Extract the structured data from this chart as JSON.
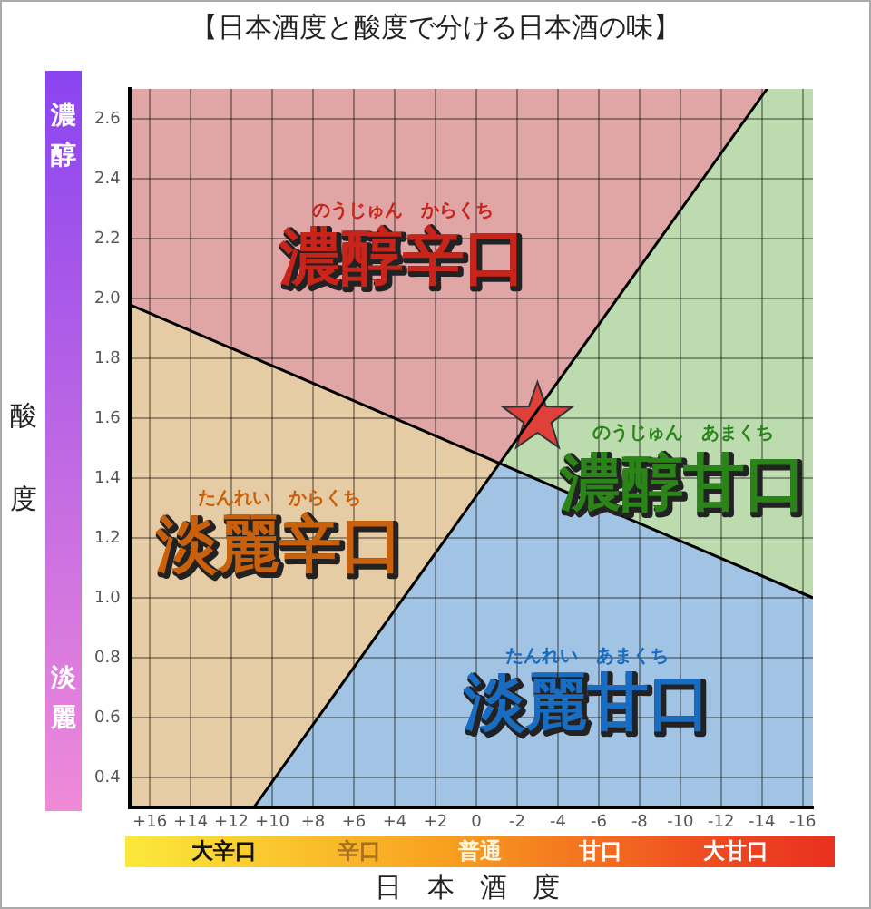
{
  "chart_data": {
    "type": "line",
    "title": "【日本酒度と酸度で分ける日本酒の味】",
    "xlabel": "日本酒度",
    "ylabel": "酸度",
    "xlim": [
      17,
      -16.5
    ],
    "ylim": [
      0.3,
      2.7
    ],
    "xticks": [
      {
        "value": 16,
        "label": "+16"
      },
      {
        "value": 14,
        "label": "+14"
      },
      {
        "value": 12,
        "label": "+12"
      },
      {
        "value": 10,
        "label": "+10"
      },
      {
        "value": 8,
        "label": "+8"
      },
      {
        "value": 6,
        "label": "+6"
      },
      {
        "value": 4,
        "label": "+4"
      },
      {
        "value": 2,
        "label": "+2"
      },
      0,
      -2,
      -4,
      -6,
      -8,
      -10,
      -12,
      -14,
      -16
    ],
    "yticks": [
      0.4,
      0.6,
      0.8,
      {
        "value": 1,
        "label": "1.0"
      },
      1.2,
      1.4,
      1.6,
      1.8,
      {
        "value": 2,
        "label": "2.0"
      },
      2.2,
      2.4,
      2.6
    ],
    "grid": true,
    "legend": false,
    "series": [
      {
        "type": "line",
        "color": "#000000",
        "marker": "none",
        "x": [
          17,
          -16.5
        ],
        "values": [
          1.98,
          1.0
        ]
      },
      {
        "type": "line",
        "color": "#000000",
        "marker": "none",
        "x": [
          10.9,
          -14.25
        ],
        "values": [
          0.3,
          2.7
        ]
      },
      {
        "type": "scatter",
        "color": "#e0403a",
        "marker": "star",
        "x": [
          -3
        ],
        "values": [
          1.6
        ]
      }
    ],
    "annotations": [
      "のうじゅん　からくち",
      "濃醇辛口",
      "のうじゅん　あまくち",
      "濃醇甘口",
      "たんれい　からくち",
      "淡麗辛口",
      "たんれい　あまくち",
      "淡麗甘口",
      "濃醇",
      "淡麗",
      "大辛口",
      "辛口",
      "普通",
      "甘口",
      "大甘口"
    ]
  }
}
